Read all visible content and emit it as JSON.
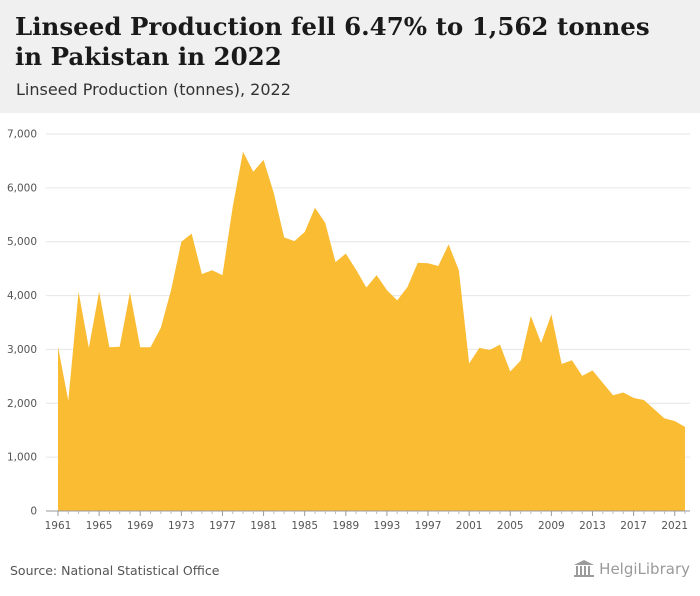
{
  "header": {
    "title": "Linseed Production fell 6.47% to 1,562 tonnes in Pakistan in 2022",
    "subtitle": "Linseed Production (tonnes), 2022"
  },
  "footer": {
    "source": "Source: National Statistical Office",
    "logo_text": "HelgiLibrary"
  },
  "colors": {
    "area_fill": "#F9BC33",
    "grid": "#e6e6e6",
    "header_bg": "#f0f0f0"
  },
  "chart_data": {
    "type": "area",
    "title": "Linseed Production fell 6.47% to 1,562 tonnes in Pakistan in 2022",
    "subtitle": "Linseed Production (tonnes), 2022",
    "xlabel": "",
    "ylabel": "",
    "ylim": [
      0,
      7000
    ],
    "y_ticks": [
      0,
      1000,
      2000,
      3000,
      4000,
      5000,
      6000,
      7000
    ],
    "y_tick_labels": [
      "0",
      "1,000",
      "2,000",
      "3,000",
      "4,000",
      "5,000",
      "6,000",
      "7,000"
    ],
    "x_ticks": [
      1961,
      1965,
      1969,
      1973,
      1977,
      1981,
      1985,
      1989,
      1993,
      1997,
      2001,
      2005,
      2009,
      2013,
      2017,
      2021
    ],
    "grid": true,
    "legend": "none",
    "x": [
      1961,
      1962,
      1963,
      1964,
      1965,
      1966,
      1967,
      1968,
      1969,
      1970,
      1971,
      1972,
      1973,
      1974,
      1975,
      1976,
      1977,
      1978,
      1979,
      1980,
      1981,
      1982,
      1983,
      1984,
      1985,
      1986,
      1987,
      1988,
      1989,
      1990,
      1991,
      1992,
      1993,
      1994,
      1995,
      1996,
      1997,
      1998,
      1999,
      2000,
      2001,
      2002,
      2003,
      2004,
      2005,
      2006,
      2007,
      2008,
      2009,
      2010,
      2011,
      2012,
      2013,
      2014,
      2015,
      2016,
      2017,
      2018,
      2019,
      2020,
      2021,
      2022
    ],
    "series": [
      {
        "values": [
          3050,
          2050,
          4070,
          3030,
          4070,
          3040,
          3050,
          4060,
          3040,
          3040,
          3400,
          4100,
          5000,
          5150,
          4400,
          4470,
          4380,
          5650,
          6670,
          6300,
          6520,
          5900,
          5080,
          5010,
          5180,
          5630,
          5350,
          4620,
          4780,
          4480,
          4150,
          4380,
          4100,
          3910,
          4160,
          4610,
          4600,
          4550,
          4950,
          4470,
          2740,
          3030,
          2990,
          3090,
          2590,
          2790,
          3620,
          3120,
          3650,
          2730,
          2800,
          2510,
          2610,
          2380,
          2150,
          2200,
          2100,
          2060,
          1890,
          1720,
          1670,
          1562
        ]
      }
    ]
  }
}
